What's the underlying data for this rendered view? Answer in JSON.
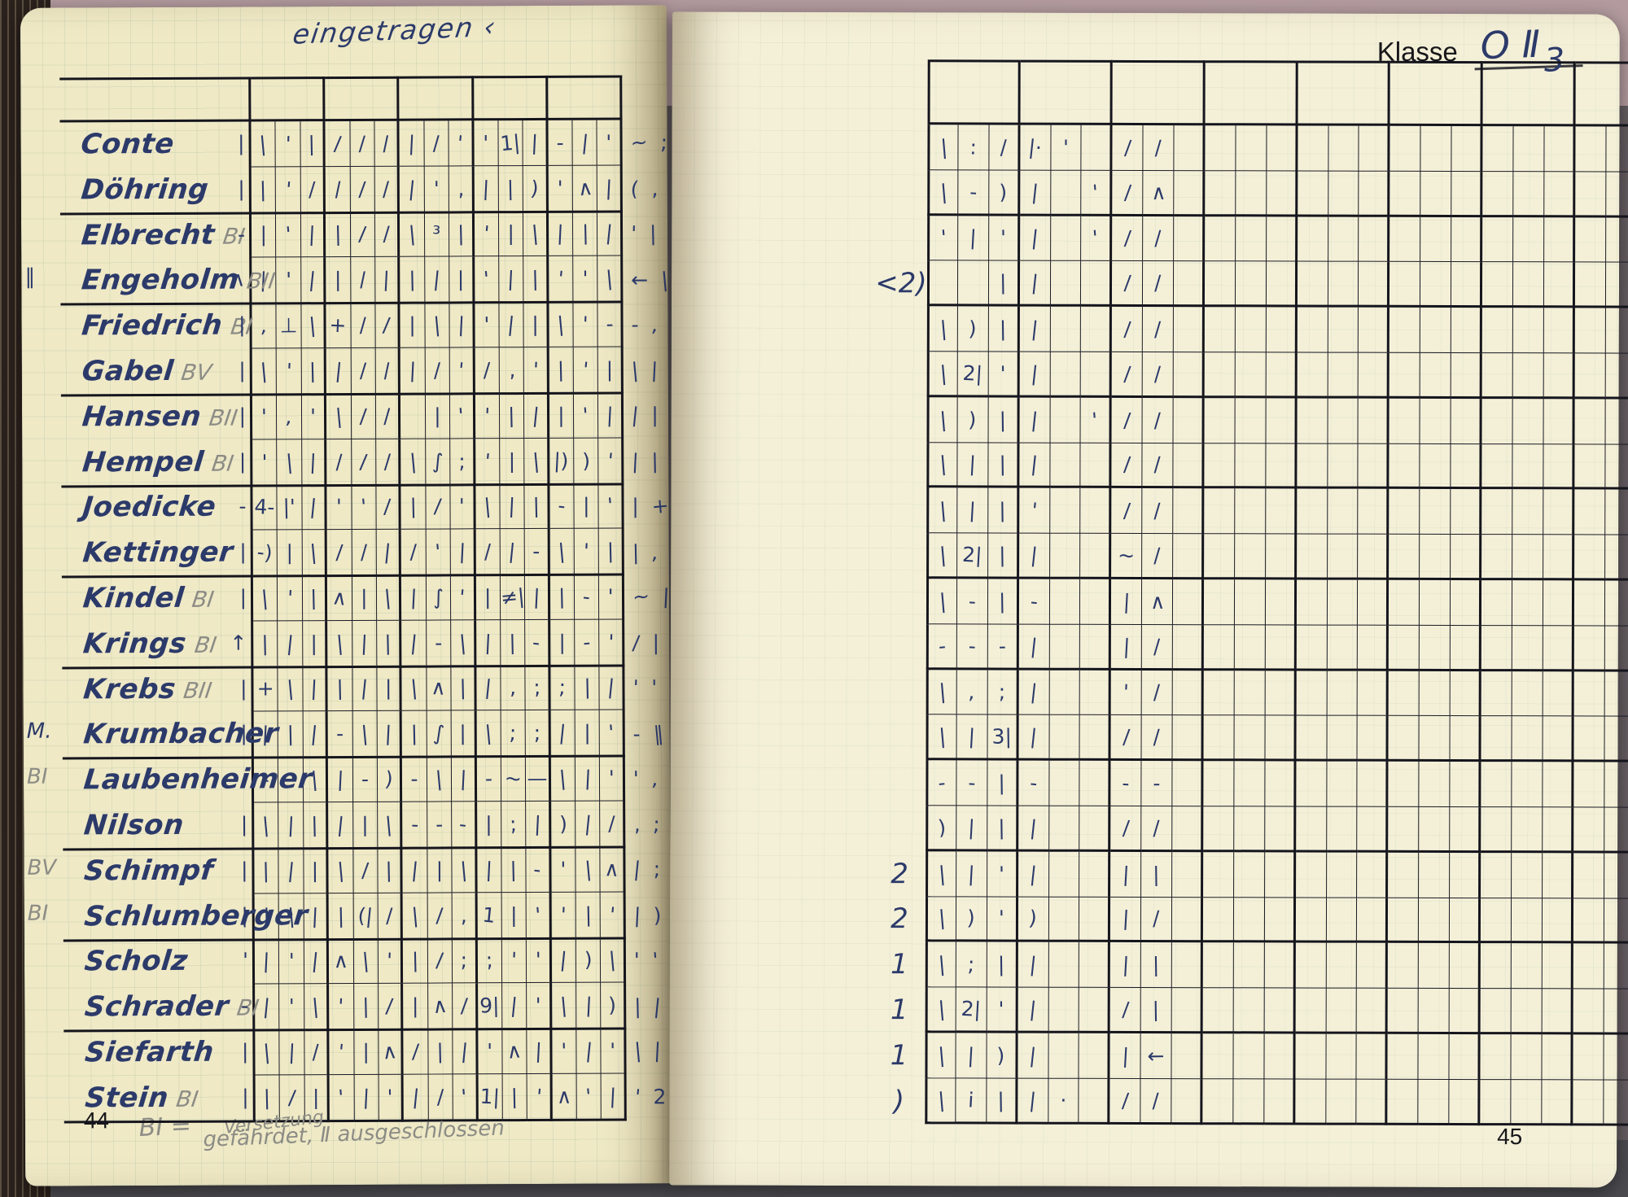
{
  "book": {
    "top_note": "eingetragen  ‹",
    "klasse_label": "Klasse",
    "klasse_value_main": "O Ⅱ",
    "klasse_value_sub": "3",
    "left_page_number": "44",
    "right_page_number": "45",
    "bottom_note_prefix": "BI =",
    "bottom_note_line1": "Versetzung",
    "bottom_note_line2": "gefährdet, Ⅱ ausgeschlossen"
  },
  "grid": {
    "left_groups": 5,
    "right_groups": 8,
    "subcolumns_per_group": 3,
    "row_group_size": 2,
    "ink_color": "#2c3a6a",
    "pencil_color": "#8c8c85",
    "line_color": "#15151d"
  },
  "students": [
    {
      "prefix": "",
      "pre_pencil": false,
      "name": "Conte",
      "suffix": "",
      "edge": "|",
      "left": [
        "|",
        "'",
        "|",
        "/",
        "/",
        "/",
        "|",
        "/",
        "'",
        "'",
        "1|",
        "|",
        "-",
        "|",
        "'"
      ],
      "fold": "~ ;",
      "gutter": "",
      "right": [
        "|",
        ":",
        "/",
        "|·",
        "'",
        "",
        "/",
        "/"
      ]
    },
    {
      "prefix": "",
      "pre_pencil": false,
      "name": "Döhring",
      "suffix": "",
      "edge": "|",
      "left": [
        "|",
        "'",
        "/",
        "/",
        "/",
        "/",
        "|",
        "'",
        ",",
        "|",
        "|",
        ")",
        "'",
        "∧",
        "|"
      ],
      "fold": "( ,",
      "gutter": "",
      "right": [
        "|",
        "-",
        ")",
        "|",
        "",
        "'",
        "/",
        "∧"
      ]
    },
    {
      "prefix": "",
      "pre_pencil": false,
      "name": "Elbrecht",
      "suffix": "BI",
      "edge": "-",
      "left": [
        "|",
        "'",
        "|",
        "|",
        "/",
        "/",
        "|",
        "³",
        "|",
        "'",
        "|",
        "|",
        "|",
        "|",
        "|"
      ],
      "fold": "' |",
      "gutter": "",
      "right": [
        "'",
        "|",
        "'",
        "|",
        "",
        "'",
        "/",
        "/"
      ]
    },
    {
      "prefix": "∥",
      "pre_pencil": false,
      "name": "Engeholm",
      "suffix": "BII",
      "edge": "∧",
      "left": [
        "|",
        "'",
        "|",
        "|",
        "/",
        "|",
        "|",
        "|",
        "|",
        "'",
        "|",
        "|",
        "'",
        "'",
        "|"
      ],
      "fold": "← |",
      "gutter": "<2)",
      "right": [
        "",
        "",
        "|",
        "|",
        "",
        "",
        "/",
        "/"
      ]
    },
    {
      "prefix": "",
      "pre_pencil": false,
      "name": "Friedrich",
      "suffix": "BI",
      "edge": "|",
      "left": [
        ",",
        "⊥",
        "|",
        "+",
        "/",
        "/",
        "|",
        "|",
        "|",
        "'",
        "|",
        "|",
        "|",
        "'",
        "-"
      ],
      "fold": "- ,",
      "gutter": "",
      "right": [
        "|",
        ")",
        "|",
        "|",
        "",
        "",
        "/",
        "/"
      ]
    },
    {
      "prefix": "",
      "pre_pencil": false,
      "name": "Gabel",
      "suffix": "BV",
      "edge": "|",
      "left": [
        "|",
        "'",
        "|",
        "|",
        "/",
        "/",
        "|",
        "/",
        "'",
        "/",
        ",",
        "'",
        "|",
        "'",
        "|"
      ],
      "fold": "| |",
      "gutter": "",
      "right": [
        "|",
        "2|",
        "'",
        "|",
        "",
        "",
        "/",
        "/"
      ]
    },
    {
      "prefix": "",
      "pre_pencil": false,
      "name": "Hansen",
      "suffix": "BII",
      "edge": "|",
      "left": [
        "'",
        ",",
        "'",
        "|",
        "/",
        "/",
        "",
        "|",
        "'",
        "'",
        "|",
        "|",
        "|",
        "'",
        "|"
      ],
      "fold": "| |",
      "gutter": "",
      "right": [
        "|",
        ")",
        "|",
        "|",
        "",
        "'",
        "/",
        "/"
      ]
    },
    {
      "prefix": "",
      "pre_pencil": false,
      "name": "Hempel",
      "suffix": "BI",
      "edge": "|",
      "left": [
        "'",
        "|",
        "|",
        "/",
        "/",
        "/",
        "|",
        "∫",
        ";",
        "'",
        "|",
        "|",
        "|)",
        ")",
        "'"
      ],
      "fold": "| |",
      "gutter": "",
      "right": [
        "|",
        "|",
        "|",
        "|",
        "",
        "",
        "/",
        "/"
      ]
    },
    {
      "prefix": "",
      "pre_pencil": false,
      "name": "Joedicke",
      "suffix": "",
      "edge": "-",
      "left": [
        "4-",
        "|'",
        "|",
        "'",
        "'",
        "/",
        "|",
        "/",
        "'",
        "|",
        "|",
        "|",
        "-",
        "|",
        "'"
      ],
      "fold": "| +",
      "gutter": "",
      "right": [
        "|",
        "|",
        "|",
        "'",
        "",
        "",
        "/",
        "/"
      ]
    },
    {
      "prefix": "",
      "pre_pencil": false,
      "name": "Kettinger",
      "suffix": "",
      "edge": "|",
      "left": [
        "-)",
        "|",
        "|",
        "/",
        "/",
        "|",
        "/",
        "'",
        "|",
        "/",
        "|",
        "-",
        "|",
        "'",
        "|"
      ],
      "fold": "| ,",
      "gutter": "",
      "right": [
        "|",
        "2|",
        "|",
        "|",
        "",
        "",
        "~",
        "/"
      ]
    },
    {
      "prefix": "",
      "pre_pencil": false,
      "name": "Kindel",
      "suffix": "BI",
      "edge": "|",
      "left": [
        "|",
        "'",
        "|",
        "∧",
        "|",
        "|",
        "|",
        "∫",
        "'",
        "|",
        "≠|",
        "|",
        "|",
        "-",
        "'"
      ],
      "fold": "~ |",
      "gutter": "",
      "right": [
        "|",
        "-",
        "|",
        "-",
        "",
        "",
        "|",
        "∧"
      ]
    },
    {
      "prefix": "",
      "pre_pencil": false,
      "name": "Krings",
      "suffix": "BI",
      "edge": "↑",
      "left": [
        "|",
        "|",
        "|",
        "|",
        "|",
        "|",
        "|",
        "-",
        "|",
        "|",
        "|",
        "-",
        "|",
        "-",
        "'"
      ],
      "fold": "/ |",
      "gutter": "",
      "right": [
        "-",
        "-",
        "-",
        "|",
        "",
        "",
        "|",
        "/"
      ]
    },
    {
      "prefix": "",
      "pre_pencil": false,
      "name": "Krebs",
      "suffix": "BII",
      "edge": "|",
      "left": [
        "+",
        "|",
        "|",
        "|",
        "|",
        "|",
        "|",
        "∧",
        "|",
        "|",
        ",",
        ";",
        ";",
        "|",
        "|"
      ],
      "fold": "' '",
      "gutter": "",
      "right": [
        "|",
        ",",
        ";",
        "|",
        "",
        "",
        "'",
        "/"
      ]
    },
    {
      "prefix": "M.",
      "pre_pencil": false,
      "name": "Krumbacher",
      "suffix": "",
      "edge": "|",
      "left": [
        "|",
        "|",
        "|",
        "-",
        "|",
        "|",
        "|",
        "∫",
        "|",
        "|",
        ";",
        ";",
        "|",
        "|",
        "'"
      ],
      "fold": "- ∥",
      "gutter": "",
      "right": [
        "|",
        "|",
        "3|",
        "|",
        "",
        "",
        "/",
        "/"
      ]
    },
    {
      "prefix": "BI",
      "pre_pencil": true,
      "name": "Laubenheimer",
      "suffix": "",
      "edge": "",
      "left": [
        "-",
        "-",
        "|",
        "|",
        "-",
        ")",
        "-",
        "|",
        "|",
        "-",
        "~",
        "—",
        "|",
        "|",
        "'"
      ],
      "fold": "' ,",
      "gutter": "",
      "right": [
        "-",
        "-",
        "|",
        "-",
        "",
        "",
        "-",
        "-"
      ]
    },
    {
      "prefix": "",
      "pre_pencil": false,
      "name": "Nilson",
      "suffix": "",
      "edge": "|",
      "left": [
        "|",
        "|",
        "|",
        "|",
        "|",
        "|",
        "-",
        "-",
        "-",
        "|",
        ";",
        "|",
        ")",
        "|",
        "/"
      ],
      "fold": ", ;",
      "gutter": "",
      "right": [
        ")",
        "|",
        "|",
        "|",
        "",
        "",
        "/",
        "/"
      ]
    },
    {
      "prefix": "BV",
      "pre_pencil": true,
      "name": "Schimpf",
      "suffix": "",
      "edge": "|",
      "left": [
        "|",
        "|",
        "|",
        "|",
        "/",
        "|",
        "|",
        "|",
        "|",
        "|",
        "|",
        "-",
        "'",
        "|",
        "∧"
      ],
      "fold": "| ;",
      "gutter": "2",
      "right": [
        "|",
        "|",
        "'",
        "|",
        "",
        "",
        "|",
        "|"
      ]
    },
    {
      "prefix": "BI",
      "pre_pencil": true,
      "name": "Schlumberger",
      "suffix": "",
      "edge": "|",
      "left": [
        "|",
        "|",
        "|",
        "|",
        "(|",
        "/",
        "|",
        "/",
        ",",
        "1",
        "|",
        "'",
        "'",
        "|",
        "'"
      ],
      "fold": "| )",
      "gutter": "2",
      "right": [
        "|",
        ")",
        "'",
        ")",
        "",
        "",
        "|",
        "/"
      ]
    },
    {
      "prefix": "",
      "pre_pencil": false,
      "name": "Scholz",
      "suffix": "",
      "edge": "'",
      "left": [
        "|",
        "'",
        "|",
        "∧",
        "|",
        "'",
        "|",
        "/",
        ";",
        ";",
        "'",
        "'",
        "|",
        ")",
        "|"
      ],
      "fold": "' '",
      "gutter": "1",
      "right": [
        "|",
        ";",
        "|",
        "|",
        "",
        "",
        "|",
        "|"
      ]
    },
    {
      "prefix": "",
      "pre_pencil": false,
      "name": "Schrader",
      "suffix": "BI",
      "edge": "-",
      "left": [
        "|",
        "'",
        "|",
        "'",
        "|",
        "/",
        "|",
        "∧",
        "/",
        "9|",
        "|",
        "'",
        "|",
        "|",
        ")"
      ],
      "fold": "| |",
      "gutter": "1",
      "right": [
        "|",
        "2|",
        "'",
        "|",
        "",
        "",
        "/",
        "|"
      ]
    },
    {
      "prefix": "",
      "pre_pencil": false,
      "name": "Siefarth",
      "suffix": "",
      "edge": "|",
      "left": [
        "|",
        "|",
        "/",
        "'",
        "|",
        "∧",
        "/",
        "|",
        "|",
        "'",
        "∧",
        "|",
        "'",
        "|",
        "'"
      ],
      "fold": "| |",
      "gutter": "1",
      "right": [
        "|",
        "|",
        ")",
        "|",
        "",
        "",
        "|",
        "←"
      ]
    },
    {
      "prefix": "",
      "pre_pencil": false,
      "name": "Stein",
      "suffix": "BI",
      "edge": "|",
      "left": [
        "|",
        "/",
        "|",
        "'",
        "|",
        "'",
        "|",
        "/",
        "'",
        "1|",
        "|",
        "'",
        "∧",
        "'",
        "|"
      ],
      "fold": "' 2",
      "gutter": ")",
      "right": [
        "|",
        "i",
        "|",
        "|",
        "·",
        "",
        "/",
        "/"
      ]
    }
  ]
}
